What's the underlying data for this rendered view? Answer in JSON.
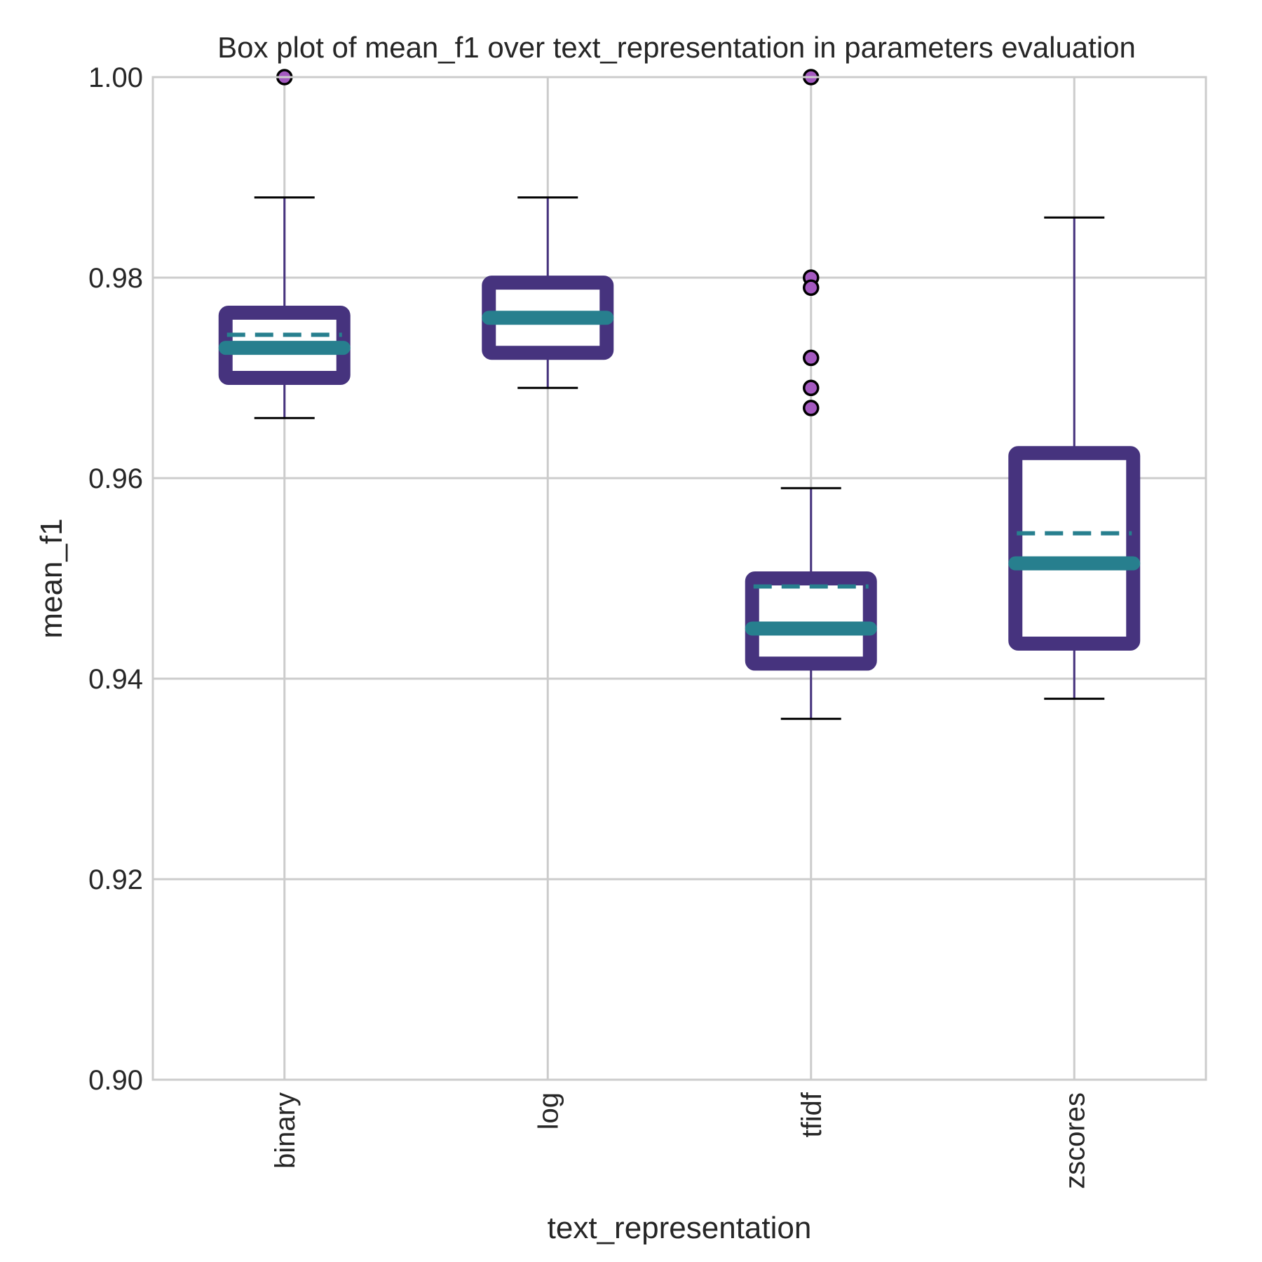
{
  "chart_data": {
    "type": "box",
    "title": "Box plot of mean_f1 over text_representation in parameters evaluation",
    "xlabel": "text_representation",
    "ylabel": "mean_f1",
    "ylim": [
      0.9,
      1.0
    ],
    "yticks": [
      "0.90",
      "0.92",
      "0.94",
      "0.96",
      "0.98",
      "1.00"
    ],
    "ytick_values": [
      0.9,
      0.92,
      0.94,
      0.96,
      0.98,
      1.0
    ],
    "grid": true,
    "categories": [
      "binary",
      "log",
      "tfidf",
      "zscores"
    ],
    "boxes": [
      {
        "category": "binary",
        "whisker_low": 0.966,
        "q1": 0.97,
        "median": 0.973,
        "mean": 0.9743,
        "q3": 0.9765,
        "whisker_high": 0.988,
        "outliers": [
          1.0
        ]
      },
      {
        "category": "log",
        "whisker_low": 0.969,
        "q1": 0.9725,
        "median": 0.976,
        "mean": 0.976,
        "q3": 0.9795,
        "whisker_high": 0.988,
        "outliers": []
      },
      {
        "category": "tfidf",
        "whisker_low": 0.936,
        "q1": 0.9415,
        "median": 0.945,
        "mean": 0.9492,
        "q3": 0.95,
        "whisker_high": 0.959,
        "outliers": [
          1.0,
          0.98,
          0.979,
          0.972,
          0.969,
          0.967
        ]
      },
      {
        "category": "zscores",
        "whisker_low": 0.938,
        "q1": 0.9435,
        "median": 0.9515,
        "mean": 0.9545,
        "q3": 0.9625,
        "whisker_high": 0.986,
        "outliers": []
      }
    ],
    "colors": {
      "box": "#46337e",
      "median": "#277f8e",
      "mean": "#277f8e",
      "whisker": "#46337e",
      "cap": "#000000",
      "outlier_fill": "#a459c0",
      "outlier_edge": "#000000",
      "grid": "#cccccc",
      "frame": "#cccccc"
    }
  }
}
